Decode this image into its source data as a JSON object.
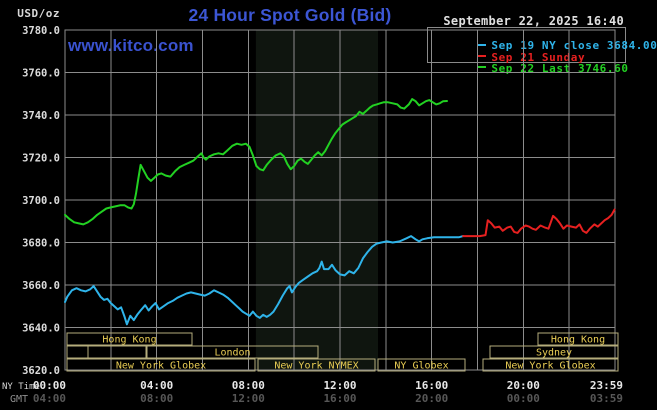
{
  "header": {
    "units_label": "USD/oz",
    "title": "24 Hour Spot Gold (Bid)",
    "datetime": "September 22, 2025 16:40",
    "watermark": "www.kitco.com"
  },
  "legend": {
    "items": [
      {
        "label": "Sep 19 NY close 3684.00",
        "color": "#2fb4ea"
      },
      {
        "label": "Sep 21 Sunday",
        "color": "#e72020"
      },
      {
        "label": "Sep 22 Last 3746.60",
        "color": "#22d122"
      }
    ]
  },
  "colors": {
    "background": "#000000",
    "grid": "#8c8c8c",
    "plot_border": "#8c8c8c",
    "session_band": "#0f150f",
    "session_box_border": "#b5ad7c",
    "session_box_text": "#e9cd55",
    "axis_text": "#dcdcdc",
    "x_axis_text": "#e8e8e8",
    "gmt_text": "#575757",
    "gmt_label_text": "#8f8f8f",
    "ny_time_label_text": "#d6d6d6"
  },
  "chart_data": {
    "type": "line",
    "title": "24 Hour Spot Gold (Bid)",
    "y_axis": {
      "units": "USD/oz",
      "min": 3620,
      "max": 3780,
      "tick_step": 20,
      "tick_labels": [
        "3780.0",
        "3760.0",
        "3740.0",
        "3720.0",
        "3700.0",
        "3680.0",
        "3660.0",
        "3640.0",
        "3620.0"
      ]
    },
    "x_axis": {
      "ny_label": "NY Time",
      "gmt_label": "GMT",
      "min_hour": 0,
      "max_hour": 24,
      "grid_step_hours": 2,
      "ticks": [
        {
          "hour": 0,
          "ny": "00:00",
          "gmt": "04:00",
          "align": "end-at-axis-start"
        },
        {
          "hour": 4,
          "ny": "04:00",
          "gmt": "08:00",
          "align": "center"
        },
        {
          "hour": 8,
          "ny": "08:00",
          "gmt": "12:00",
          "align": "center"
        },
        {
          "hour": 12,
          "ny": "12:00",
          "gmt": "16:00",
          "align": "center"
        },
        {
          "hour": 16,
          "ny": "16:00",
          "gmt": "20:00",
          "align": "center"
        },
        {
          "hour": 20,
          "ny": "20:00",
          "gmt": "00:00",
          "align": "center"
        },
        {
          "hour": 23.983,
          "ny": "23:59",
          "gmt": "03:59",
          "align": "end-at-axis-end"
        }
      ]
    },
    "session_band": {
      "start_hour": 8.33,
      "end_hour": 13.66
    },
    "series": [
      {
        "name": "Sep 19 NY close",
        "color": "#2fb4ea",
        "points": [
          [
            0.0,
            3652
          ],
          [
            0.1,
            3654.5
          ],
          [
            0.3,
            3657.5
          ],
          [
            0.5,
            3658.5
          ],
          [
            0.7,
            3657.5
          ],
          [
            0.9,
            3657
          ],
          [
            1.1,
            3658
          ],
          [
            1.25,
            3659.5
          ],
          [
            1.4,
            3657
          ],
          [
            1.55,
            3654.5
          ],
          [
            1.7,
            3653
          ],
          [
            1.85,
            3653.5
          ],
          [
            2.0,
            3651.5
          ],
          [
            2.15,
            3650
          ],
          [
            2.3,
            3648.5
          ],
          [
            2.45,
            3649.5
          ],
          [
            2.6,
            3645
          ],
          [
            2.7,
            3641.5
          ],
          [
            2.85,
            3645.5
          ],
          [
            3.0,
            3643.5
          ],
          [
            3.15,
            3646
          ],
          [
            3.3,
            3648
          ],
          [
            3.5,
            3650.5
          ],
          [
            3.65,
            3648
          ],
          [
            3.8,
            3650
          ],
          [
            3.95,
            3651.5
          ],
          [
            4.1,
            3648.5
          ],
          [
            4.3,
            3650
          ],
          [
            4.5,
            3651.5
          ],
          [
            4.7,
            3652.5
          ],
          [
            4.9,
            3654
          ],
          [
            5.1,
            3655
          ],
          [
            5.3,
            3656
          ],
          [
            5.5,
            3656.5
          ],
          [
            5.7,
            3656
          ],
          [
            5.9,
            3655.5
          ],
          [
            6.1,
            3655
          ],
          [
            6.3,
            3656
          ],
          [
            6.5,
            3657.5
          ],
          [
            6.7,
            3656.5
          ],
          [
            6.9,
            3655.5
          ],
          [
            7.1,
            3654
          ],
          [
            7.3,
            3652
          ],
          [
            7.45,
            3650.5
          ],
          [
            7.6,
            3649
          ],
          [
            7.75,
            3647.5
          ],
          [
            7.9,
            3646.5
          ],
          [
            8.05,
            3645.5
          ],
          [
            8.2,
            3647.5
          ],
          [
            8.35,
            3645.5
          ],
          [
            8.5,
            3644.5
          ],
          [
            8.65,
            3646
          ],
          [
            8.8,
            3645
          ],
          [
            8.95,
            3646
          ],
          [
            9.1,
            3647.5
          ],
          [
            9.3,
            3651
          ],
          [
            9.5,
            3655
          ],
          [
            9.7,
            3658.5
          ],
          [
            9.8,
            3659.5
          ],
          [
            9.9,
            3656.5
          ],
          [
            10.05,
            3659
          ],
          [
            10.2,
            3661
          ],
          [
            10.4,
            3662.5
          ],
          [
            10.6,
            3664
          ],
          [
            10.8,
            3665.5
          ],
          [
            11.0,
            3666.5
          ],
          [
            11.1,
            3668
          ],
          [
            11.2,
            3671
          ],
          [
            11.3,
            3667.5
          ],
          [
            11.5,
            3667.5
          ],
          [
            11.65,
            3669.5
          ],
          [
            11.8,
            3667
          ],
          [
            12.0,
            3665
          ],
          [
            12.2,
            3664.5
          ],
          [
            12.4,
            3666.5
          ],
          [
            12.6,
            3665.5
          ],
          [
            12.8,
            3668
          ],
          [
            13.0,
            3672.5
          ],
          [
            13.2,
            3675.5
          ],
          [
            13.4,
            3678
          ],
          [
            13.6,
            3679.5
          ],
          [
            13.8,
            3680
          ],
          [
            14.05,
            3680.5
          ],
          [
            14.3,
            3680
          ],
          [
            14.6,
            3680.5
          ],
          [
            14.9,
            3682
          ],
          [
            15.1,
            3683
          ],
          [
            15.3,
            3681.5
          ],
          [
            15.45,
            3680.5
          ],
          [
            15.6,
            3681.5
          ],
          [
            15.8,
            3682
          ],
          [
            16.1,
            3682.5
          ],
          [
            16.5,
            3682.5
          ],
          [
            16.9,
            3682.5
          ],
          [
            17.2,
            3682.5
          ],
          [
            17.37,
            3683
          ]
        ]
      },
      {
        "name": "Sep 21 Sunday",
        "color": "#e72020",
        "points": [
          [
            17.37,
            3683
          ],
          [
            17.8,
            3683
          ],
          [
            18.1,
            3683
          ],
          [
            18.35,
            3683.5
          ],
          [
            18.45,
            3690.5
          ],
          [
            18.6,
            3689
          ],
          [
            18.75,
            3687
          ],
          [
            18.95,
            3687.5
          ],
          [
            19.1,
            3685.5
          ],
          [
            19.3,
            3687
          ],
          [
            19.45,
            3687.5
          ],
          [
            19.6,
            3685
          ],
          [
            19.75,
            3684.5
          ],
          [
            19.9,
            3686.5
          ],
          [
            20.1,
            3688
          ],
          [
            20.25,
            3687.5
          ],
          [
            20.4,
            3686.5
          ],
          [
            20.55,
            3686
          ],
          [
            20.75,
            3688
          ],
          [
            20.95,
            3687
          ],
          [
            21.1,
            3686.5
          ],
          [
            21.3,
            3692.5
          ],
          [
            21.45,
            3691
          ],
          [
            21.6,
            3689
          ],
          [
            21.75,
            3686.5
          ],
          [
            21.9,
            3688
          ],
          [
            22.1,
            3687.5
          ],
          [
            22.3,
            3687
          ],
          [
            22.45,
            3688.5
          ],
          [
            22.6,
            3685.5
          ],
          [
            22.75,
            3684.5
          ],
          [
            22.9,
            3686.5
          ],
          [
            23.1,
            3688.5
          ],
          [
            23.25,
            3687.5
          ],
          [
            23.4,
            3689
          ],
          [
            23.55,
            3690.5
          ],
          [
            23.7,
            3691.5
          ],
          [
            23.85,
            3693
          ],
          [
            23.98,
            3695.5
          ]
        ]
      },
      {
        "name": "Sep 22 Last",
        "color": "#22d122",
        "points": [
          [
            0.0,
            3693
          ],
          [
            0.2,
            3691
          ],
          [
            0.4,
            3689.5
          ],
          [
            0.6,
            3689
          ],
          [
            0.8,
            3688.5
          ],
          [
            1.0,
            3689.5
          ],
          [
            1.2,
            3691
          ],
          [
            1.4,
            3693
          ],
          [
            1.6,
            3694.5
          ],
          [
            1.8,
            3696
          ],
          [
            2.0,
            3696.5
          ],
          [
            2.2,
            3697
          ],
          [
            2.4,
            3697.5
          ],
          [
            2.6,
            3697.5
          ],
          [
            2.75,
            3696.5
          ],
          [
            2.9,
            3696
          ],
          [
            3.0,
            3698
          ],
          [
            3.1,
            3703
          ],
          [
            3.2,
            3710
          ],
          [
            3.3,
            3716.5
          ],
          [
            3.45,
            3713.5
          ],
          [
            3.6,
            3710.5
          ],
          [
            3.75,
            3709
          ],
          [
            3.9,
            3710.5
          ],
          [
            4.05,
            3712
          ],
          [
            4.2,
            3712.5
          ],
          [
            4.4,
            3711.5
          ],
          [
            4.6,
            3711
          ],
          [
            4.8,
            3713.5
          ],
          [
            5.0,
            3715.5
          ],
          [
            5.2,
            3716.5
          ],
          [
            5.4,
            3717.5
          ],
          [
            5.6,
            3718.5
          ],
          [
            5.8,
            3720.5
          ],
          [
            5.95,
            3722
          ],
          [
            6.05,
            3720
          ],
          [
            6.15,
            3719
          ],
          [
            6.3,
            3720.5
          ],
          [
            6.5,
            3721.5
          ],
          [
            6.7,
            3722
          ],
          [
            6.9,
            3721.5
          ],
          [
            7.1,
            3723.5
          ],
          [
            7.3,
            3725.5
          ],
          [
            7.5,
            3726.5
          ],
          [
            7.7,
            3726
          ],
          [
            7.9,
            3726.5
          ],
          [
            8.05,
            3725
          ],
          [
            8.2,
            3721
          ],
          [
            8.35,
            3716
          ],
          [
            8.5,
            3714.5
          ],
          [
            8.65,
            3714
          ],
          [
            8.8,
            3716.5
          ],
          [
            9.0,
            3719
          ],
          [
            9.2,
            3721
          ],
          [
            9.4,
            3722
          ],
          [
            9.55,
            3720.5
          ],
          [
            9.7,
            3717
          ],
          [
            9.85,
            3714.5
          ],
          [
            10.0,
            3716
          ],
          [
            10.15,
            3718.5
          ],
          [
            10.3,
            3719.5
          ],
          [
            10.45,
            3718
          ],
          [
            10.6,
            3717
          ],
          [
            10.75,
            3719
          ],
          [
            10.9,
            3721
          ],
          [
            11.05,
            3722.5
          ],
          [
            11.2,
            3721
          ],
          [
            11.35,
            3723
          ],
          [
            11.5,
            3726
          ],
          [
            11.65,
            3729
          ],
          [
            11.8,
            3731.5
          ],
          [
            11.95,
            3733.5
          ],
          [
            12.1,
            3735.5
          ],
          [
            12.25,
            3736.5
          ],
          [
            12.4,
            3737.5
          ],
          [
            12.55,
            3738.5
          ],
          [
            12.7,
            3739.5
          ],
          [
            12.85,
            3741.5
          ],
          [
            13.0,
            3740.5
          ],
          [
            13.15,
            3742
          ],
          [
            13.3,
            3743.5
          ],
          [
            13.45,
            3744.5
          ],
          [
            13.6,
            3745
          ],
          [
            13.75,
            3745.5
          ],
          [
            13.9,
            3746
          ],
          [
            14.1,
            3746
          ],
          [
            14.3,
            3745.5
          ],
          [
            14.5,
            3745
          ],
          [
            14.65,
            3743.5
          ],
          [
            14.8,
            3743
          ],
          [
            15.0,
            3745
          ],
          [
            15.15,
            3747.5
          ],
          [
            15.3,
            3746.5
          ],
          [
            15.45,
            3744.5
          ],
          [
            15.6,
            3745.5
          ],
          [
            15.75,
            3746.5
          ],
          [
            15.9,
            3747
          ],
          [
            16.05,
            3746
          ],
          [
            16.2,
            3745
          ],
          [
            16.35,
            3745.5
          ],
          [
            16.5,
            3746.5
          ],
          [
            16.67,
            3746.6
          ]
        ]
      }
    ],
    "sessions": {
      "rows": [
        {
          "boxes": [
            {
              "x1": 67,
              "x2": 192,
              "label": "Hong Kong"
            },
            {
              "x1": 538,
              "x2": 618,
              "label": "Hong Kong"
            }
          ]
        },
        {
          "boxes": [
            {
              "x1": 67,
              "x2": 88,
              "label": ""
            },
            {
              "x1": 88,
              "x2": 146,
              "label": ""
            },
            {
              "x1": 147,
              "x2": 318,
              "label": "London"
            },
            {
              "x1": 490,
              "x2": 618,
              "label": "Sydney"
            }
          ]
        },
        {
          "boxes": [
            {
              "x1": 67,
              "x2": 255,
              "label": "New York Globex"
            },
            {
              "x1": 258,
              "x2": 375,
              "label": "New York NYMEX"
            },
            {
              "x1": 378,
              "x2": 465,
              "label": "NY Globex"
            },
            {
              "x1": 483,
              "x2": 618,
              "label": "New York Globex"
            }
          ]
        }
      ]
    }
  }
}
